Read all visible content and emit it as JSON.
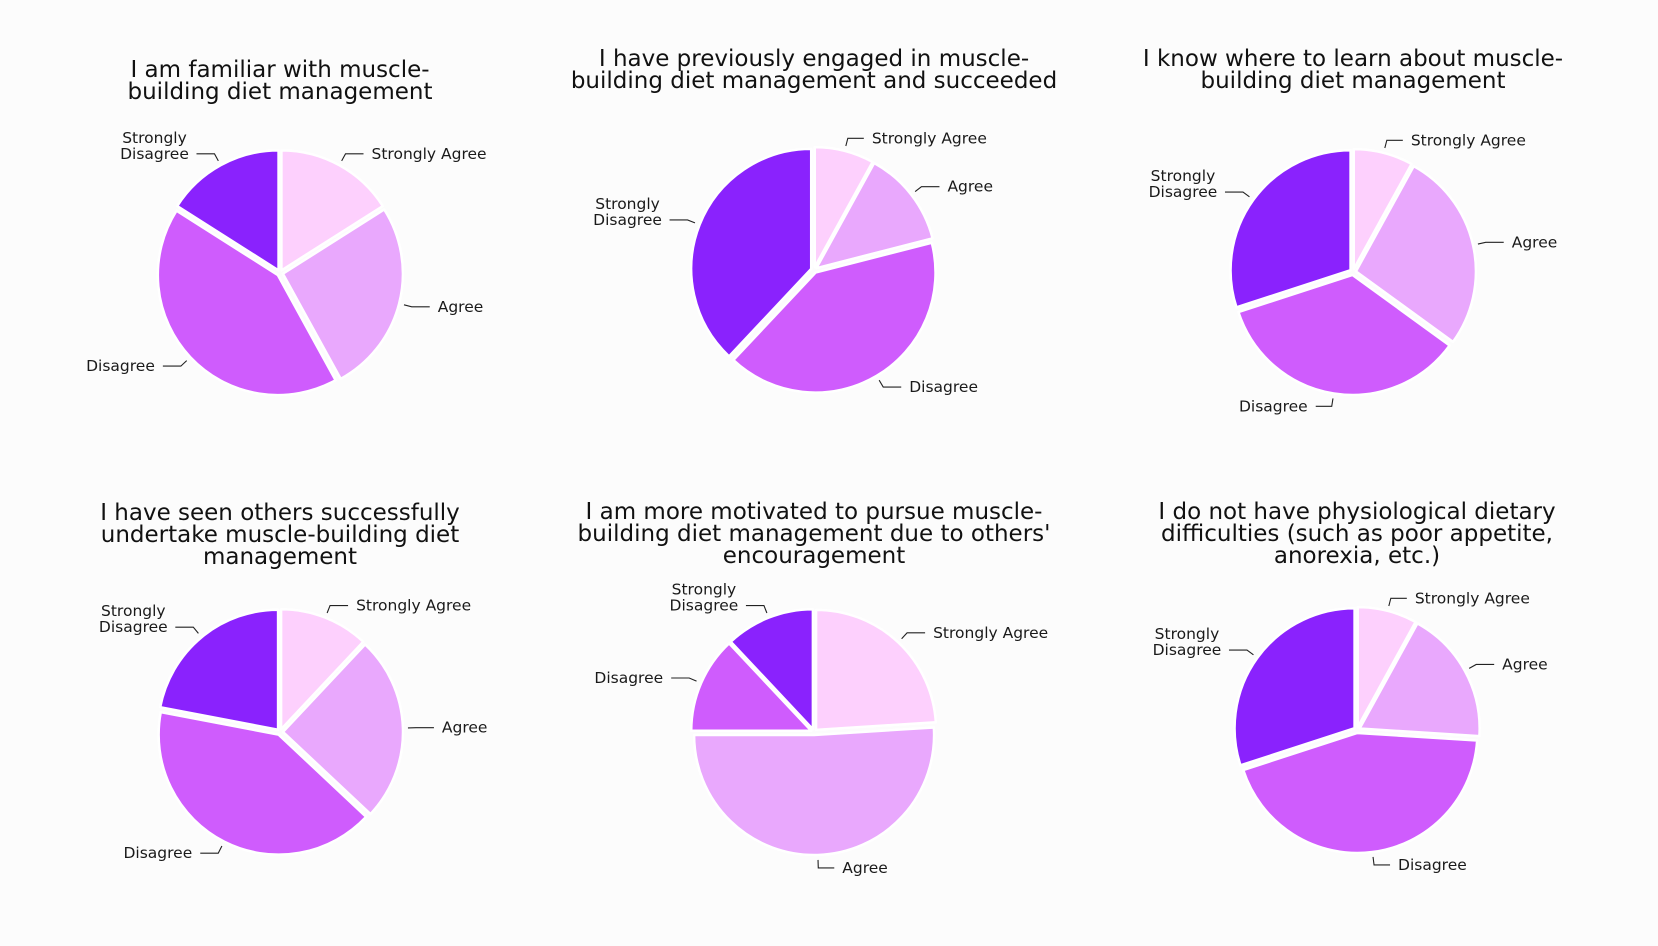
{
  "colors": {
    "Strongly Agree": "#fdd0fd",
    "Agree": "#e9a8fd",
    "Disagree": "#cf5cfd",
    "Strongly Disagree": "#8a22fd"
  },
  "chart_data": [
    {
      "type": "pie",
      "title": [
        "I am familiar with muscle-",
        "building diet management"
      ],
      "categories": [
        "Strongly Agree",
        "Agree",
        "Disagree",
        "Strongly Disagree"
      ],
      "values": [
        16,
        26,
        42,
        16
      ]
    },
    {
      "type": "pie",
      "title": [
        "I have previously engaged in muscle-",
        "building diet management and succeeded"
      ],
      "categories": [
        "Strongly Agree",
        "Agree",
        "Disagree",
        "Strongly Disagree"
      ],
      "values": [
        8,
        13,
        41,
        38
      ]
    },
    {
      "type": "pie",
      "title": [
        "I know where to learn about muscle-",
        "building diet management"
      ],
      "categories": [
        "Strongly Agree",
        "Agree",
        "Disagree",
        "Strongly Disagree"
      ],
      "values": [
        8,
        27,
        35,
        30
      ]
    },
    {
      "type": "pie",
      "title": [
        "I have seen others successfully",
        "undertake muscle-building diet",
        "management"
      ],
      "categories": [
        "Strongly Agree",
        "Agree",
        "Disagree",
        "Strongly Disagree"
      ],
      "values": [
        12,
        25,
        41,
        22
      ]
    },
    {
      "type": "pie",
      "title": [
        "I am more motivated to pursue muscle-",
        "building diet management due to others'",
        "encouragement"
      ],
      "categories": [
        "Strongly Agree",
        "Agree",
        "Disagree",
        "Strongly Disagree"
      ],
      "values": [
        24,
        51,
        13,
        12
      ]
    },
    {
      "type": "pie",
      "title": [
        "I do not have physiological dietary",
        "difficulties (such as poor appetite,",
        "anorexia, etc.)"
      ],
      "categories": [
        "Strongly Agree",
        "Agree",
        "Disagree",
        "Strongly Disagree"
      ],
      "values": [
        8,
        18,
        44,
        30
      ]
    }
  ]
}
